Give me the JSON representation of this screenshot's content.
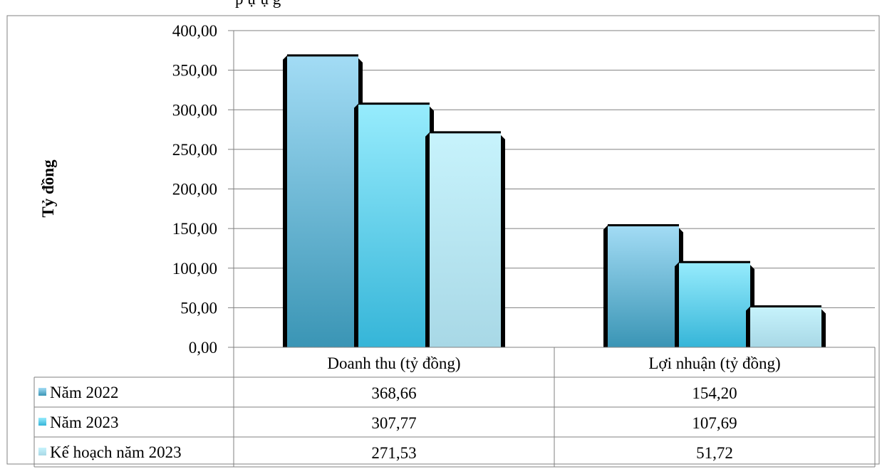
{
  "header": {
    "partial_title": "p          ự       ụ   g"
  },
  "chart_data": {
    "type": "bar",
    "ylabel": "Tỷ đồng",
    "ylim": [
      0,
      400
    ],
    "yticks": [
      "0,00",
      "50,00",
      "100,00",
      "150,00",
      "200,00",
      "250,00",
      "300,00",
      "350,00",
      "400,00"
    ],
    "categories": [
      "Doanh thu (tỷ đồng)",
      "Lợi nhuận (tỷ đồng)"
    ],
    "series": [
      {
        "name": "Năm 2022",
        "values": [
          368.66,
          154.2
        ],
        "labels": [
          "368,66",
          "154,20"
        ],
        "color": "#5fb0d6"
      },
      {
        "name": "Năm 2023",
        "values": [
          307.77,
          107.69
        ],
        "labels": [
          "307,77",
          "107,69"
        ],
        "color": "#4cc8e8"
      },
      {
        "name": "Kế hoạch năm 2023",
        "values": [
          271.53,
          51.72
        ],
        "labels": [
          "271,53",
          "51,72"
        ],
        "color": "#a8e2f0"
      }
    ],
    "grid": true,
    "legend": "data-table"
  }
}
